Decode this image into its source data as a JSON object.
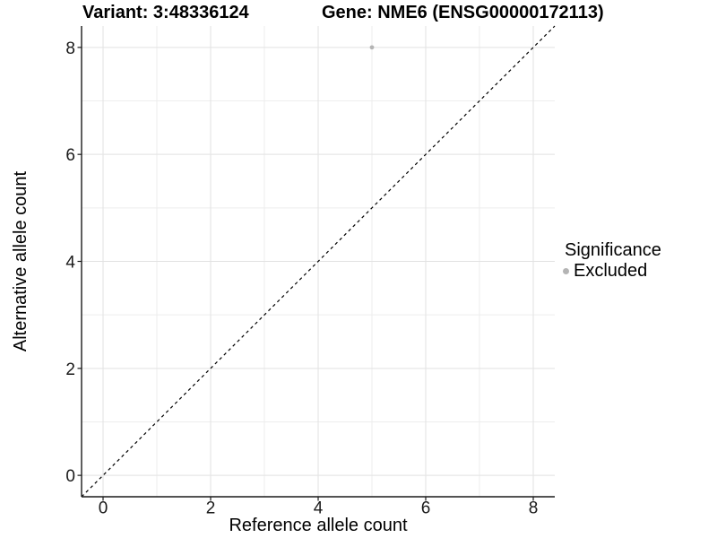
{
  "chart_data": {
    "type": "scatter",
    "title_left": "Variant: 3:48336124",
    "title_right": "Gene: NME6 (ENSG00000172113)",
    "xlabel": "Reference allele count",
    "ylabel": "Alternative allele count",
    "xticks": [
      0,
      2,
      4,
      6,
      8
    ],
    "yticks": [
      0,
      2,
      4,
      6,
      8
    ],
    "x_minor_ticks": [
      1,
      3,
      5,
      7
    ],
    "y_minor_ticks": [
      1,
      3,
      5,
      7
    ],
    "xlim": [
      -0.4,
      8.4
    ],
    "ylim": [
      -0.4,
      8.4
    ],
    "grid": "on",
    "points": [
      {
        "x": 5,
        "y": 8,
        "series": "Excluded"
      }
    ],
    "reference_line": {
      "kind": "identity",
      "from": [
        -0.4,
        -0.4
      ],
      "to": [
        8.4,
        8.4
      ],
      "style": "dashed",
      "color": "#000000"
    },
    "legend": {
      "title": "Significance",
      "position": "right",
      "items": [
        {
          "label": "Excluded",
          "color": "#b4b4b4"
        }
      ]
    }
  },
  "colors": {
    "background": "#ffffff",
    "axis_line": "#1a1a1a",
    "tick_text": "#1a1a1a",
    "grid_major": "#e2e2e2",
    "grid_minor": "#ededed",
    "point_excluded": "#b4b4b4"
  }
}
